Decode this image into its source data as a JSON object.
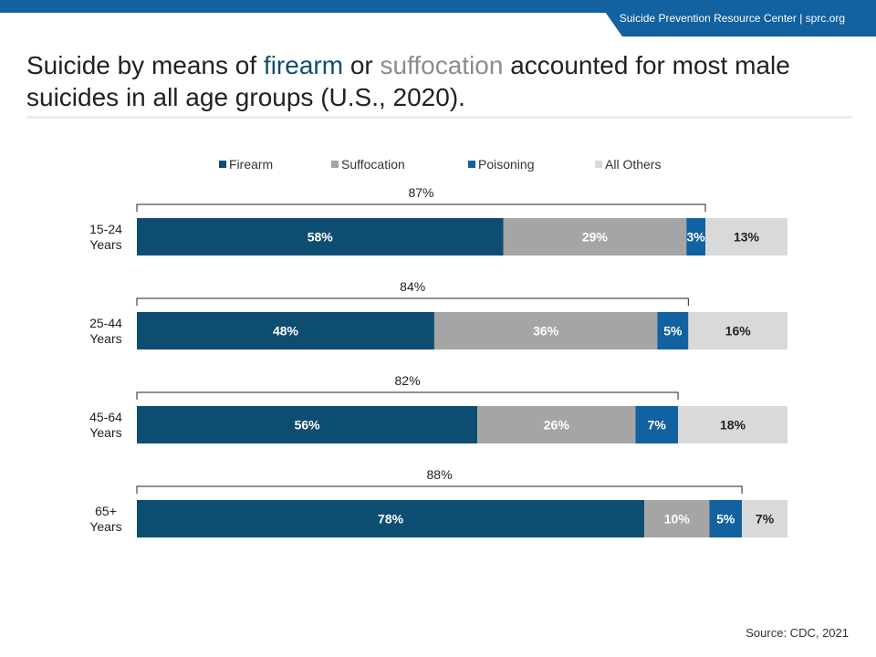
{
  "header": {
    "brand_text": "Suicide Prevention Resource Center  |  sprc.org"
  },
  "headline": {
    "part1": "Suicide by means of ",
    "highlight1": "firearm",
    "part2": " or ",
    "highlight2": "suffocation",
    "part3": " accounted for most male suicides in all age groups (U.S., 2020)."
  },
  "source": "Source: CDC, 2021",
  "colors": {
    "firearm": "#0e4d72",
    "suffocation": "#a5a5a5",
    "poisoning": "#1261a0",
    "all_others": "#d9d9d9",
    "brand": "#1261a0"
  },
  "chart_data": {
    "type": "bar",
    "orientation": "horizontal",
    "stacked": true,
    "categories": [
      "15-24 Years",
      "25-44 Years",
      "45-64 Years",
      "65+ Years"
    ],
    "series": [
      {
        "name": "Firearm",
        "values": [
          58,
          48,
          56,
          78
        ]
      },
      {
        "name": "Suffocation",
        "values": [
          29,
          36,
          26,
          10
        ]
      },
      {
        "name": "Poisoning",
        "values": [
          3,
          5,
          7,
          5
        ]
      },
      {
        "name": "All Others",
        "values": [
          13,
          16,
          18,
          7
        ]
      }
    ],
    "bracket_totals": [
      87,
      84,
      82,
      88
    ],
    "value_suffix": "%",
    "legend_position": "top",
    "grid": false
  }
}
